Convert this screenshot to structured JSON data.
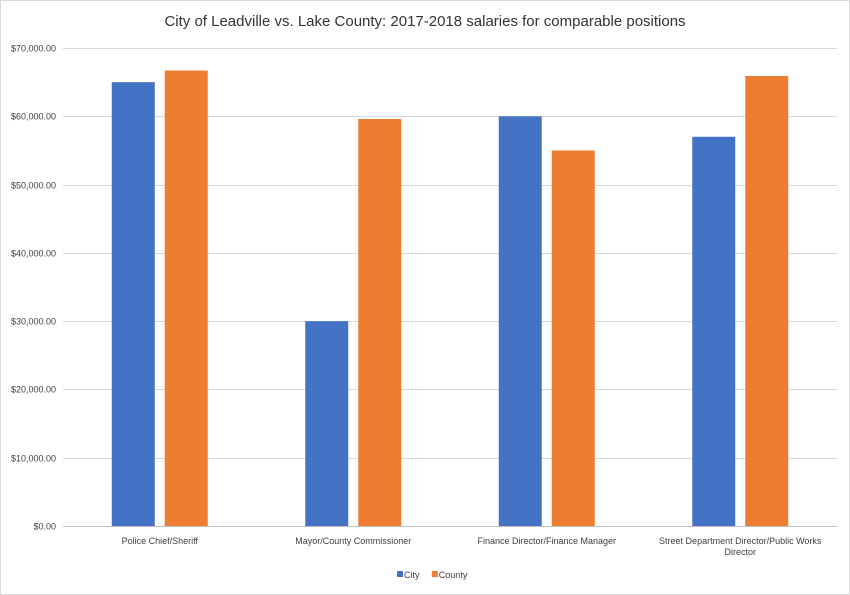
{
  "chart_data": {
    "type": "bar",
    "title": "City of Leadville vs. Lake County: 2017-2018 salaries for comparable positions",
    "xlabel": "",
    "ylabel": "",
    "categories": [
      [
        "Police Chief/Sheriff"
      ],
      [
        "Mayor/County Commissioner"
      ],
      [
        "Finance Director/Finance Manager"
      ],
      [
        "Street Department Director/Public Works",
        "Director"
      ]
    ],
    "series": [
      {
        "name": "City",
        "color": "#4472c4",
        "values": [
          65000,
          30000,
          60000,
          57000
        ]
      },
      {
        "name": "County",
        "color": "#ed7d31",
        "values": [
          66700,
          59600,
          55000,
          65900
        ]
      }
    ],
    "ylim": [
      0,
      70000
    ],
    "yticks": [
      0,
      10000,
      20000,
      30000,
      40000,
      50000,
      60000,
      70000
    ],
    "ytick_labels": [
      "$0.00",
      "$10,000.00",
      "$20,000.00",
      "$30,000.00",
      "$40,000.00",
      "$50,000.00",
      "$60,000.00",
      "$70,000.00"
    ],
    "grid": true,
    "legend_position": "bottom"
  }
}
